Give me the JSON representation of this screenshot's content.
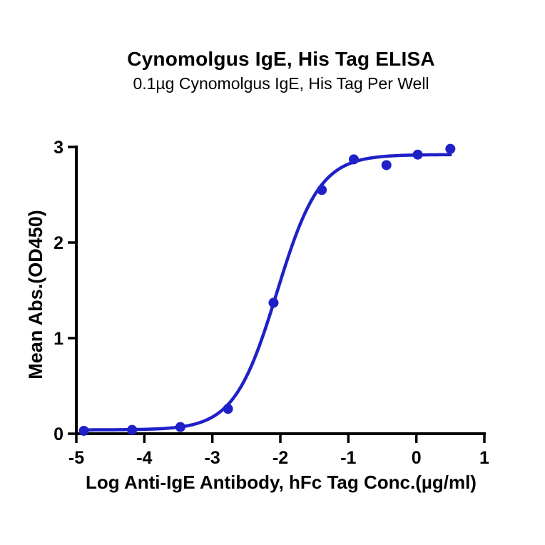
{
  "chart_data": {
    "type": "scatter",
    "title": "Cynomolgus IgE, His Tag ELISA",
    "subtitle": "0.1µg Cynomolgus IgE, His Tag Per Well",
    "xlabel": "Log Anti-IgE Antibody, hFc Tag Conc.(µg/ml)",
    "ylabel": "Mean Abs.(OD450)",
    "xlim": [
      -5,
      1
    ],
    "ylim": [
      0,
      3
    ],
    "xticks": [
      -5,
      -4,
      -3,
      -2,
      -1,
      0,
      1
    ],
    "yticks": [
      0,
      1,
      2,
      3
    ],
    "grid": false,
    "legend": "none",
    "series": [
      {
        "name": "Anti-IgE Antibody, hFc Tag",
        "marker": "circle",
        "color": "#2020c8",
        "x": [
          -4.89,
          -4.18,
          -3.47,
          -2.77,
          -2.1,
          -1.39,
          -0.92,
          -0.44,
          0.02,
          0.5
        ],
        "y": [
          0.03,
          0.04,
          0.07,
          0.26,
          1.37,
          2.55,
          2.87,
          2.81,
          2.92,
          2.98
        ]
      }
    ],
    "fit_curve": {
      "model": "4PL",
      "bottom": 0.04,
      "top": 2.92,
      "log_ec50": -2.05,
      "hill_slope": 1.38,
      "x_start": -4.89,
      "x_end": 0.5,
      "color": "#2020c8"
    },
    "axis_color": "#000000"
  }
}
